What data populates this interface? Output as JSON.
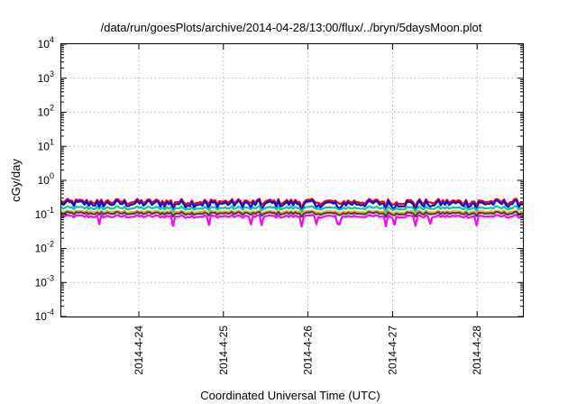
{
  "chart_data": {
    "type": "line",
    "title": "/data/run/goesPlots/archive/2014-04-28/13:00/flux/../bryn/5daysMoon.plot",
    "xlabel": "Coordinated Universal Time (UTC)",
    "ylabel": "cGy/day",
    "y_scale": "log",
    "ylim": [
      0.0001,
      10000
    ],
    "y_ticks": [
      {
        "base": "10",
        "exp": "-4",
        "value": 0.0001
      },
      {
        "base": "10",
        "exp": "-3",
        "value": 0.001
      },
      {
        "base": "10",
        "exp": "-2",
        "value": 0.01
      },
      {
        "base": "10",
        "exp": "-1",
        "value": 0.1
      },
      {
        "base": "10",
        "exp": "0",
        "value": 1
      },
      {
        "base": "10",
        "exp": "1",
        "value": 10
      },
      {
        "base": "10",
        "exp": "2",
        "value": 100
      },
      {
        "base": "10",
        "exp": "3",
        "value": 1000
      },
      {
        "base": "10",
        "exp": "4",
        "value": 10000
      }
    ],
    "xlim": [
      "2014-04-23T02:00",
      "2014-04-28T13:00"
    ],
    "x_ticks": [
      {
        "label": "2014-4-24",
        "value": "2014-04-24T00:00"
      },
      {
        "label": "2014-4-25",
        "value": "2014-04-25T00:00"
      },
      {
        "label": "2014-4-26",
        "value": "2014-04-26T00:00"
      },
      {
        "label": "2014-4-27",
        "value": "2014-04-27T00:00"
      },
      {
        "label": "2014-4-28",
        "value": "2014-04-28T00:00"
      }
    ],
    "grid": true,
    "legend": "none",
    "series": [
      {
        "color": "#ff0000",
        "base": 0.24,
        "amplitude": 0.2,
        "low_spike": 0.8,
        "min": 0.12,
        "max": 0.32
      },
      {
        "color": "#0000ff",
        "base": 0.21,
        "amplitude": 0.24,
        "low_spike": 0.65,
        "min": 0.1,
        "max": 0.3
      },
      {
        "color": "#00ccaa",
        "base": 0.155,
        "amplitude": 0.12,
        "low_spike": 0.85,
        "min": 0.12,
        "max": 0.19
      },
      {
        "color": "#ffb000",
        "base": 0.12,
        "amplitude": 0.08,
        "low_spike": 0.9,
        "min": 0.1,
        "max": 0.14
      },
      {
        "color": "#444444",
        "base": 0.108,
        "amplitude": 0.1,
        "low_spike": 0.85,
        "min": 0.085,
        "max": 0.13
      },
      {
        "color": "#ff00ff",
        "base": 0.088,
        "amplitude": 0.1,
        "low_spike": 0.55,
        "min": 0.03,
        "max": 0.105
      }
    ]
  }
}
